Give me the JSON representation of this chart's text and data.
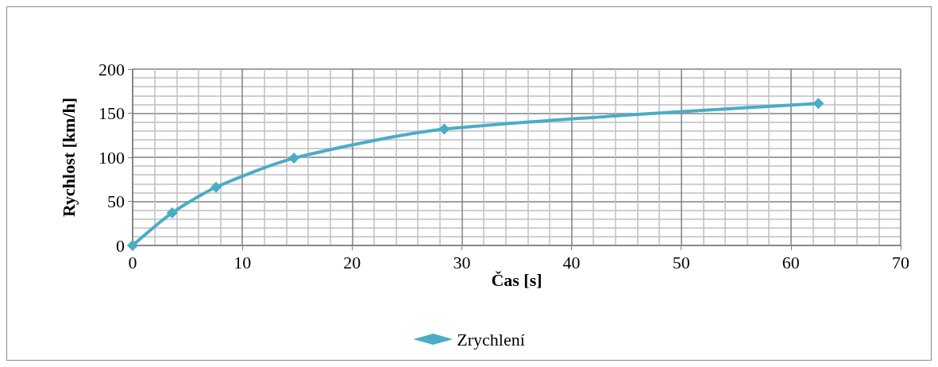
{
  "chart_data": {
    "type": "line",
    "xlabel": "Čas [s]",
    "ylabel": "Rychlost [km/h]",
    "x": [
      0,
      3.6,
      7.6,
      14.7,
      28.4,
      62.5
    ],
    "series": [
      {
        "name": "Zrychlení",
        "color": "#4bacc6",
        "values": [
          0,
          37,
          66,
          99,
          132,
          161
        ]
      }
    ],
    "xlim": [
      0,
      70
    ],
    "xticks": [
      0,
      10,
      20,
      30,
      40,
      50,
      60,
      70
    ],
    "ylim": [
      0,
      200
    ],
    "yticks": [
      0,
      50,
      100,
      150,
      200
    ],
    "grid": true,
    "legend": "bottom",
    "marker": "diamond",
    "line_style": "solid"
  }
}
